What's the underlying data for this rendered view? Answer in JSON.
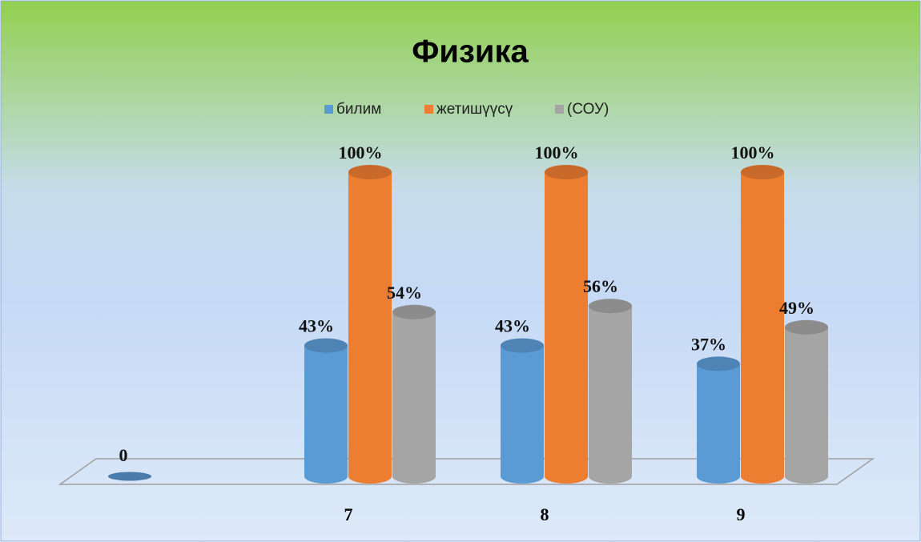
{
  "chart_data": {
    "type": "bar3d",
    "title": "Физика",
    "categories": [
      null,
      "7",
      "8",
      "9"
    ],
    "series": [
      {
        "name": "билим",
        "color": "#5b9bd5",
        "values": [
          0,
          43,
          43,
          37
        ],
        "value_labels": [
          "0",
          "43%",
          "43%",
          "37%"
        ]
      },
      {
        "name": "жетишүүсү",
        "color": "#ed7d31",
        "values": [
          null,
          100,
          100,
          100
        ],
        "value_labels": [
          null,
          "100%",
          "100%",
          "100%"
        ]
      },
      {
        "name": "(СОУ)",
        "color": "#a5a5a5",
        "values": [
          null,
          54,
          56,
          49
        ],
        "value_labels": [
          null,
          "54%",
          "56%",
          "49%"
        ]
      }
    ],
    "legend": "top"
  }
}
